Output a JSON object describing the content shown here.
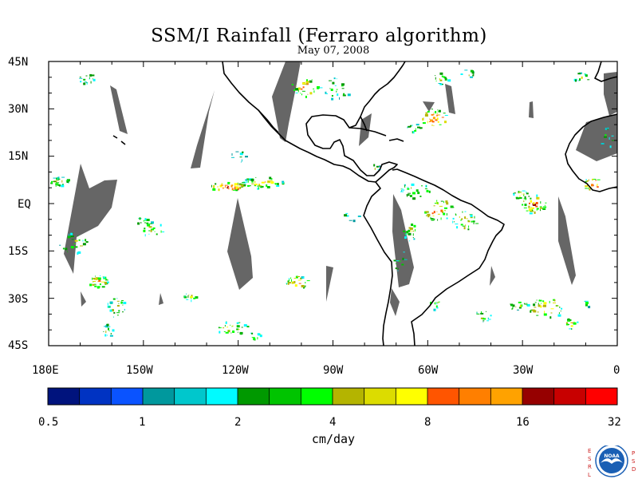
{
  "title": "SSM/I Rainfall (Ferraro algorithm)",
  "subtitle": "May 07, 2008",
  "lat_labels": [
    "45N",
    "30N",
    "15N",
    "EQ",
    "15S",
    "30S",
    "45S"
  ],
  "lon_labels": [
    "180E",
    "150W",
    "120W",
    "90W",
    "60W",
    "30W",
    "0"
  ],
  "colorbar": {
    "colors": [
      "#00137d",
      "#0033c2",
      "#0a53ff",
      "#00989d",
      "#00c7cc",
      "#00fbff",
      "#009900",
      "#00c400",
      "#00ff00",
      "#b4b400",
      "#dcdc00",
      "#ffff00",
      "#ff5500",
      "#ff7f00",
      "#ffa200",
      "#960000",
      "#c80000",
      "#ff0000"
    ],
    "tick_labels": [
      "0.5",
      "1",
      "2",
      "4",
      "8",
      "16",
      "32"
    ],
    "units": "cm/day"
  },
  "logo": {
    "text": "NOAA",
    "left_letters": [
      "E",
      "S",
      "R",
      "L"
    ],
    "right_letters": [
      "P",
      "S",
      "D"
    ],
    "accent": "#cc2222",
    "disk_color": "#1a5fb4"
  },
  "map_colors": {
    "no_data_swath": "#666666",
    "coastline": "#000000"
  }
}
